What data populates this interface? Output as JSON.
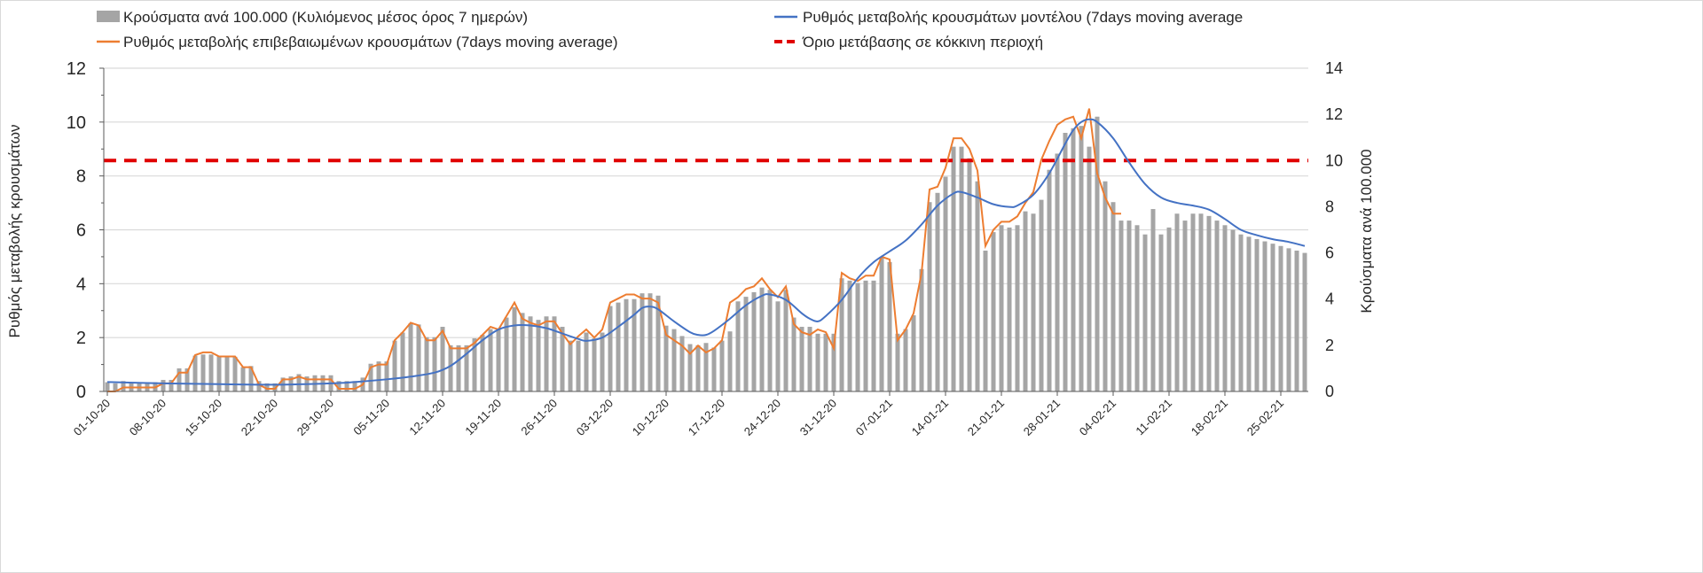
{
  "chart_data": {
    "type": "bar+line",
    "start_date": "01-10-20",
    "x_tick_labels": [
      "01-10-20",
      "08-10-20",
      "15-10-20",
      "22-10-20",
      "29-10-20",
      "05-11-20",
      "12-11-20",
      "19-11-20",
      "26-11-20",
      "03-12-20",
      "10-12-20",
      "17-12-20",
      "24-12-20",
      "31-12-20",
      "07-01-21",
      "14-01-21",
      "21-01-21",
      "28-01-21",
      "04-02-21",
      "11-02-21",
      "18-02-21",
      "25-02-21"
    ],
    "ylabel_left": "Ρυθμός μεταβολής κρουσμάτων",
    "ylabel_right": "Κρούσματα ανά 100.000",
    "ylim_left": [
      0,
      12
    ],
    "ylim_right": [
      0,
      14
    ],
    "y_ticks_left": [
      "0",
      "2",
      "4",
      "6",
      "8",
      "10",
      "12"
    ],
    "y_ticks_right": [
      "0",
      "2",
      "4",
      "6",
      "8",
      "10",
      "12",
      "14"
    ],
    "grid": true,
    "legend_position": "top",
    "legend": {
      "bars": "Κρούσματα ανά 100.000 (Κυλιόμενος μέσος όρος 7 ημερών)",
      "orange": "Ρυθμός μεταβολής επιβεβαιωμένων κρουσμάτων (7days moving average)",
      "blue": "Ρυθμός μεταβολής κρουσμάτων μοντέλου (7days moving average",
      "red": "Όριο μετάβασης σε κόκκινη περιοχή"
    },
    "colors": {
      "bars": "#a5a5a5",
      "orange": "#ed7d31",
      "blue": "#4472c4",
      "red": "#e00000",
      "grid": "#d9d9d9"
    },
    "series": [
      {
        "name": "Κρούσματα ανά 100.000 (Κυλιόμενος μέσος όρος 7 ημερών)",
        "type": "bar",
        "axis": "right",
        "daily_from_start": true,
        "values": [
          0.4,
          0.35,
          0.45,
          0.4,
          0.4,
          0.4,
          0.4,
          0.5,
          0.5,
          1.0,
          1.0,
          1.55,
          1.6,
          1.6,
          1.55,
          1.5,
          1.5,
          1.05,
          1.1,
          0.45,
          0.35,
          0.35,
          0.6,
          0.65,
          0.75,
          0.65,
          0.7,
          0.7,
          0.7,
          0.45,
          0.45,
          0.45,
          0.6,
          1.2,
          1.3,
          1.3,
          2.2,
          2.55,
          2.95,
          2.9,
          2.35,
          2.35,
          2.8,
          2.0,
          2.0,
          2.0,
          2.3,
          2.45,
          2.7,
          2.7,
          3.2,
          3.65,
          3.4,
          3.25,
          3.1,
          3.25,
          3.25,
          2.8,
          2.2,
          2.2,
          2.55,
          2.3,
          2.55,
          3.7,
          3.85,
          4.0,
          4.0,
          4.25,
          4.25,
          4.15,
          2.85,
          2.7,
          2.4,
          2.05,
          2.0,
          2.1,
          1.9,
          2.2,
          2.6,
          3.9,
          4.1,
          4.3,
          4.5,
          4.4,
          3.9,
          4.4,
          3.2,
          2.8,
          2.8,
          2.5,
          2.5,
          2.5,
          4.9,
          4.8,
          4.7,
          4.8,
          4.8,
          5.8,
          5.6,
          2.5,
          2.7,
          3.3,
          5.3,
          8.2,
          8.6,
          9.3,
          10.6,
          10.6,
          10.1,
          9.1,
          6.1,
          6.9,
          7.2,
          7.1,
          7.2,
          7.8,
          7.7,
          8.3,
          9.6,
          10.3,
          11.2,
          11.4,
          11.5,
          10.6,
          11.9,
          9.1,
          8.2,
          7.4,
          7.4,
          7.2,
          6.8,
          7.9,
          6.8,
          7.1,
          7.7,
          7.4,
          7.7,
          7.7,
          7.6,
          7.4,
          7.2,
          7.0,
          6.8,
          6.7,
          6.6,
          6.5,
          6.4,
          6.3,
          6.2,
          6.1,
          6.0
        ]
      },
      {
        "name": "Ρυθμός μεταβολής επιβεβαιωμένων κρουσμάτων (7days moving average)",
        "type": "line",
        "axis": "left",
        "daily_from_start": true,
        "values": [
          0,
          0,
          0.15,
          0.15,
          0.15,
          0.15,
          0.15,
          0.3,
          0.3,
          0.7,
          0.7,
          1.35,
          1.45,
          1.45,
          1.3,
          1.3,
          1.3,
          0.9,
          0.9,
          0.25,
          0.1,
          0.1,
          0.45,
          0.45,
          0.55,
          0.45,
          0.45,
          0.45,
          0.45,
          0.1,
          0.1,
          0.1,
          0.25,
          0.9,
          1.0,
          1.0,
          1.9,
          2.2,
          2.55,
          2.45,
          1.9,
          1.9,
          2.25,
          1.6,
          1.6,
          1.6,
          1.8,
          2.1,
          2.4,
          2.3,
          2.8,
          3.3,
          2.7,
          2.55,
          2.45,
          2.6,
          2.6,
          2.15,
          1.75,
          2.05,
          2.3,
          2.0,
          2.3,
          3.3,
          3.45,
          3.6,
          3.6,
          3.45,
          3.45,
          3.3,
          2.1,
          1.9,
          1.7,
          1.4,
          1.7,
          1.45,
          1.6,
          1.9,
          3.3,
          3.5,
          3.8,
          3.9,
          4.2,
          3.8,
          3.5,
          3.9,
          2.5,
          2.2,
          2.1,
          2.3,
          2.2,
          1.6,
          4.4,
          4.2,
          4.1,
          4.3,
          4.3,
          5.0,
          4.9,
          1.9,
          2.3,
          2.9,
          4.4,
          7.5,
          7.6,
          8.3,
          9.4,
          9.4,
          9.0,
          8.2,
          5.4,
          6.0,
          6.3,
          6.3,
          6.5,
          7.0,
          7.4,
          8.6,
          9.3,
          9.9,
          10.1,
          10.2,
          9.4,
          10.5,
          8.1,
          7.2,
          6.6,
          6.6
        ]
      },
      {
        "name": "Ρυθμός μεταβολής κρουσμάτων μοντέλου (7days moving average",
        "type": "line",
        "axis": "left",
        "day": [
          0,
          7,
          14,
          21,
          28,
          31,
          35,
          38,
          41,
          43,
          45,
          47,
          49,
          51,
          53,
          55,
          57,
          59,
          60,
          62,
          64,
          66,
          67,
          68,
          69,
          71,
          73,
          74,
          75,
          76,
          78,
          80,
          82,
          83,
          85,
          87,
          88,
          89,
          90,
          92,
          94,
          96,
          98,
          100,
          102,
          104,
          106,
          107,
          109,
          111,
          113,
          114,
          116,
          118,
          120,
          121,
          122,
          123,
          124,
          126,
          128,
          130,
          132,
          134,
          136,
          138,
          140,
          142,
          144,
          146,
          148,
          150
        ],
        "values": [
          0.35,
          0.3,
          0.27,
          0.25,
          0.3,
          0.35,
          0.45,
          0.55,
          0.7,
          0.95,
          1.4,
          1.9,
          2.3,
          2.45,
          2.45,
          2.35,
          2.15,
          1.95,
          1.88,
          2.0,
          2.4,
          2.85,
          3.1,
          3.15,
          3.05,
          2.6,
          2.2,
          2.1,
          2.1,
          2.25,
          2.7,
          3.2,
          3.55,
          3.6,
          3.4,
          2.9,
          2.7,
          2.6,
          2.8,
          3.4,
          4.2,
          4.8,
          5.2,
          5.6,
          6.2,
          6.9,
          7.35,
          7.4,
          7.2,
          6.95,
          6.85,
          6.9,
          7.3,
          8.1,
          9.2,
          9.7,
          10.0,
          10.1,
          10.0,
          9.4,
          8.5,
          7.7,
          7.2,
          7.0,
          6.9,
          6.75,
          6.4,
          6.0,
          5.8,
          5.65,
          5.55,
          5.4
        ]
      },
      {
        "name": "Όριο μετάβασης σε κόκκινη περιοχή",
        "type": "hline",
        "axis": "right",
        "value": 10
      }
    ]
  }
}
